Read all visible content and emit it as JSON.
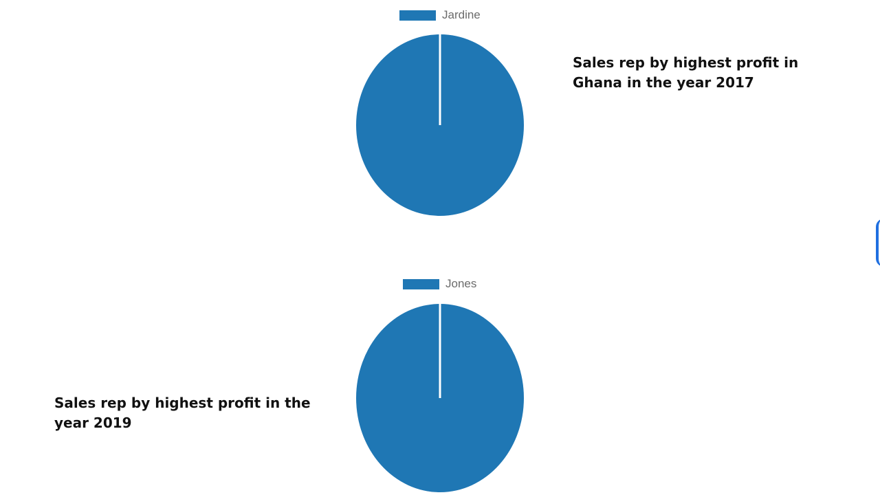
{
  "chart_data": [
    {
      "type": "pie",
      "title": "Sales rep by highest profit in Ghana in the year 2017",
      "legend": "top",
      "slices": [
        {
          "label": "Jardine",
          "value": 100,
          "color": "#1f77b4"
        }
      ]
    },
    {
      "type": "pie",
      "title": "Sales rep by highest profit in the year 2019",
      "legend": "top",
      "slices": [
        {
          "label": "Jones",
          "value": 100,
          "color": "#1f77b4"
        }
      ]
    }
  ],
  "captions": {
    "chart1_line1": "Sales rep by highest profit in",
    "chart1_line2": "Ghana in the year 2017",
    "chart2_line1": "Sales rep by highest profit in the",
    "chart2_line2": "year 2019"
  },
  "colors": {
    "slice": "#1f77b4",
    "accent": "#1f6fe0"
  }
}
